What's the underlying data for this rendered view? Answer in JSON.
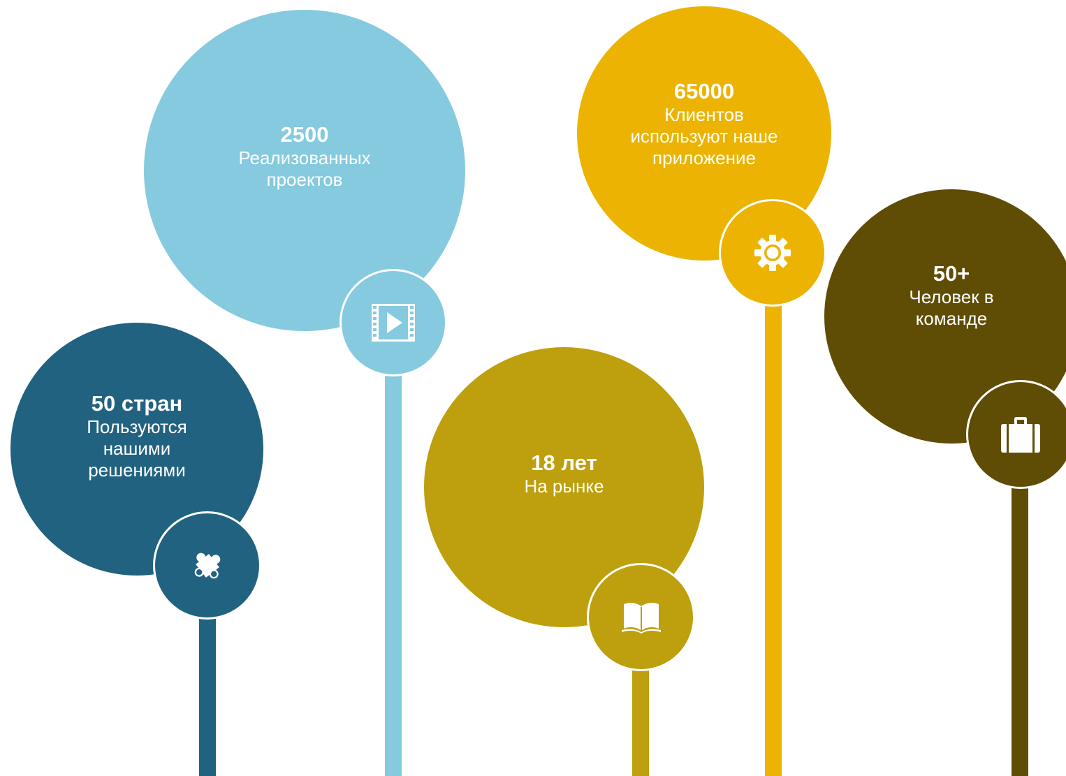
{
  "colors": {
    "dark_blue": "#226281",
    "light_blue": "#85CADF",
    "mustard": "#BE9F0D",
    "amber": "#ECB302",
    "olive_brown": "#604D05",
    "icon": "#ffffff"
  },
  "stats": [
    {
      "value": "50 стран",
      "label_lines": [
        "Пользуются",
        "нашими",
        "решениями"
      ],
      "icon": "puzzle-icon"
    },
    {
      "value": "2500",
      "label_lines": [
        "Реализованных",
        "проектов"
      ],
      "icon": "film-play-icon"
    },
    {
      "value": "18 лет",
      "label_lines": [
        "На рынке"
      ],
      "icon": "book-icon"
    },
    {
      "value": "65000",
      "label_lines": [
        "Клиентов",
        "используют наше",
        "приложение"
      ],
      "icon": "gear-icon"
    },
    {
      "value": "50+",
      "label_lines": [
        "Человек в",
        "команде"
      ],
      "icon": "briefcase-icon"
    }
  ]
}
